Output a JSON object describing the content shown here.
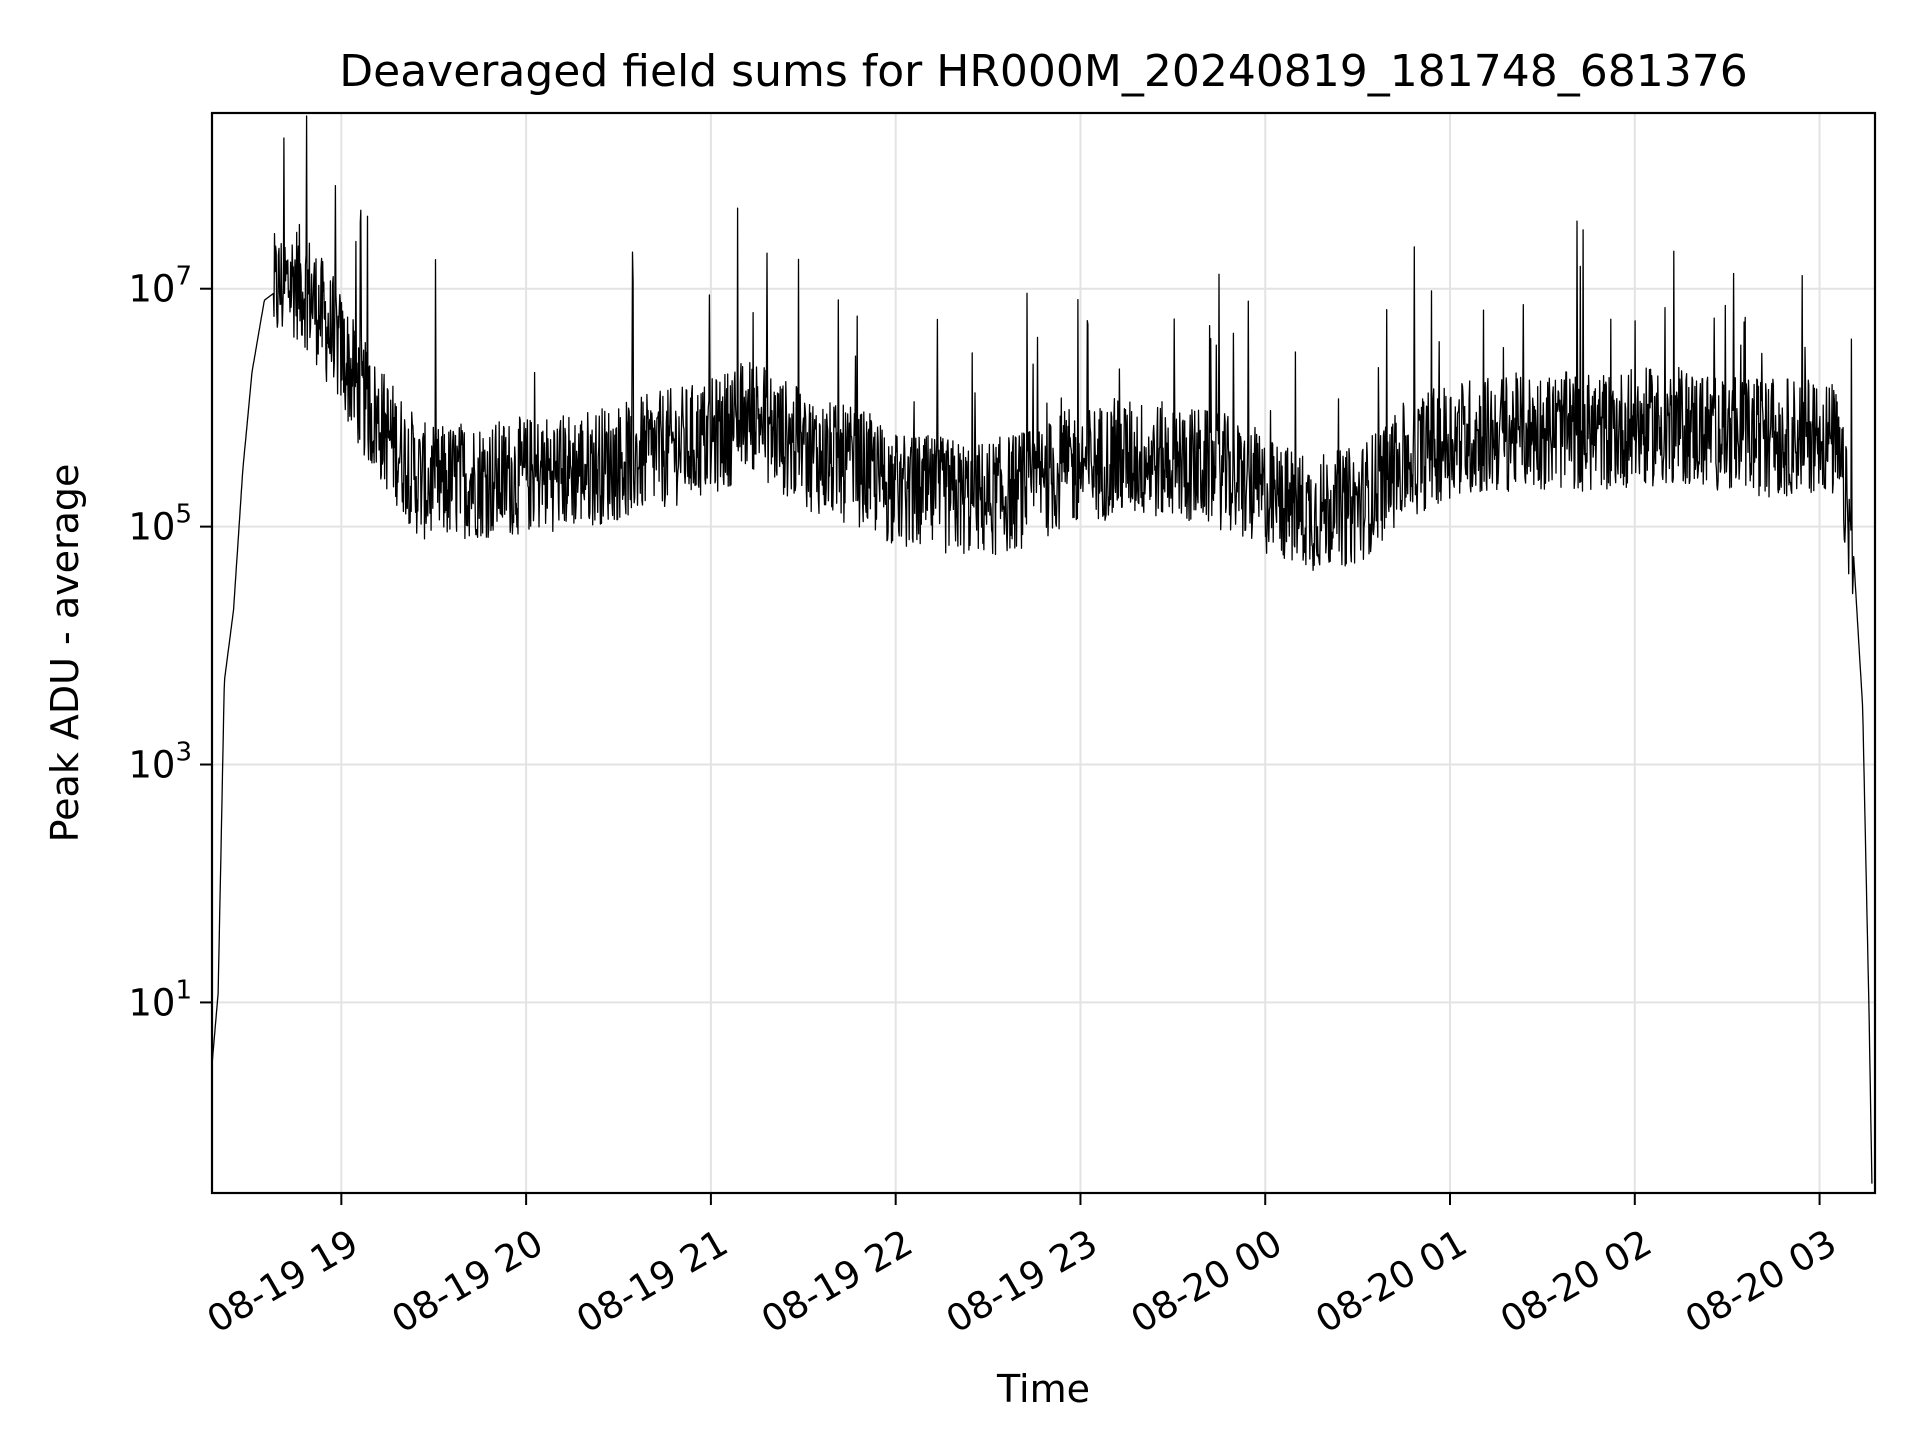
{
  "chart_data": {
    "type": "line",
    "title": "Deaveraged field sums for HR000M_20240819_181748_681376",
    "xlabel": "Time",
    "ylabel": "Peak ADU - average",
    "xscale": "time",
    "yscale": "log",
    "xlim": [
      "2024-08-19 18:18",
      "2024-08-20 03:18"
    ],
    "ylim": [
      0.25,
      300000000
    ],
    "grid": true,
    "legend": "none",
    "line_color": "#000000",
    "x_ticks": [
      {
        "value": "2024-08-19 19:00",
        "label": "08-19 19"
      },
      {
        "value": "2024-08-19 20:00",
        "label": "08-19 20"
      },
      {
        "value": "2024-08-19 21:00",
        "label": "08-19 21"
      },
      {
        "value": "2024-08-19 22:00",
        "label": "08-19 22"
      },
      {
        "value": "2024-08-19 23:00",
        "label": "08-19 23"
      },
      {
        "value": "2024-08-20 00:00",
        "label": "08-20 00"
      },
      {
        "value": "2024-08-20 01:00",
        "label": "08-20 01"
      },
      {
        "value": "2024-08-20 02:00",
        "label": "08-20 02"
      },
      {
        "value": "2024-08-20 03:00",
        "label": "08-20 03"
      }
    ],
    "y_ticks": [
      {
        "value": 10,
        "base": "10",
        "exp": "1"
      },
      {
        "value": 1000,
        "base": "10",
        "exp": "3"
      },
      {
        "value": 100000,
        "base": "10",
        "exp": "5"
      },
      {
        "value": 10000000,
        "base": "10",
        "exp": "7"
      }
    ],
    "series": [
      {
        "x": [
          "2024-08-19 18:18",
          "2024-08-19 18:20",
          "2024-08-19 18:22",
          "2024-08-19 18:25",
          "2024-08-19 18:28",
          "2024-08-19 18:31",
          "2024-08-19 18:35",
          "2024-08-19 18:40",
          "2024-08-19 18:45",
          "2024-08-19 18:50",
          "2024-08-19 18:55",
          "2024-08-19 19:00",
          "2024-08-19 19:05",
          "2024-08-19 19:10",
          "2024-08-19 19:15",
          "2024-08-19 19:20",
          "2024-08-19 19:25",
          "2024-08-19 19:30",
          "2024-08-19 19:40",
          "2024-08-19 19:50",
          "2024-08-19 20:00",
          "2024-08-19 20:15",
          "2024-08-19 20:30",
          "2024-08-19 20:45",
          "2024-08-19 21:00",
          "2024-08-19 21:10",
          "2024-08-19 21:15",
          "2024-08-19 21:20",
          "2024-08-19 21:30",
          "2024-08-19 21:40",
          "2024-08-19 21:50",
          "2024-08-19 22:00",
          "2024-08-19 22:15",
          "2024-08-19 22:30",
          "2024-08-19 22:45",
          "2024-08-19 22:55",
          "2024-08-19 23:00",
          "2024-08-19 23:15",
          "2024-08-19 23:30",
          "2024-08-19 23:45",
          "2024-08-20 00:00",
          "2024-08-20 00:15",
          "2024-08-20 00:30",
          "2024-08-20 00:45",
          "2024-08-20 01:00",
          "2024-08-20 01:15",
          "2024-08-20 01:30",
          "2024-08-20 01:45",
          "2024-08-20 02:00",
          "2024-08-20 02:15",
          "2024-08-20 02:30",
          "2024-08-20 02:45",
          "2024-08-20 03:00",
          "2024-08-20 03:05",
          "2024-08-20 03:08",
          "2024-08-20 03:11",
          "2024-08-20 03:14",
          "2024-08-20 03:16",
          "2024-08-20 03:17"
        ],
        "y": [
          3,
          12,
          5000,
          20000,
          300000,
          2000000,
          8000000,
          10000000,
          12000000,
          9000000,
          5000000,
          3000000,
          1500000,
          900000,
          600000,
          400000,
          250000,
          220000,
          250000,
          250000,
          270000,
          300000,
          350000,
          450000,
          550000,
          800000,
          900000,
          650000,
          450000,
          350000,
          300000,
          200000,
          180000,
          170000,
          220000,
          300000,
          330000,
          380000,
          350000,
          300000,
          180000,
          130000,
          150000,
          350000,
          550000,
          600000,
          650000,
          620000,
          680000,
          700000,
          620000,
          550000,
          620000,
          500000,
          200000,
          60000,
          3000,
          10,
          0.3
        ]
      }
    ]
  }
}
